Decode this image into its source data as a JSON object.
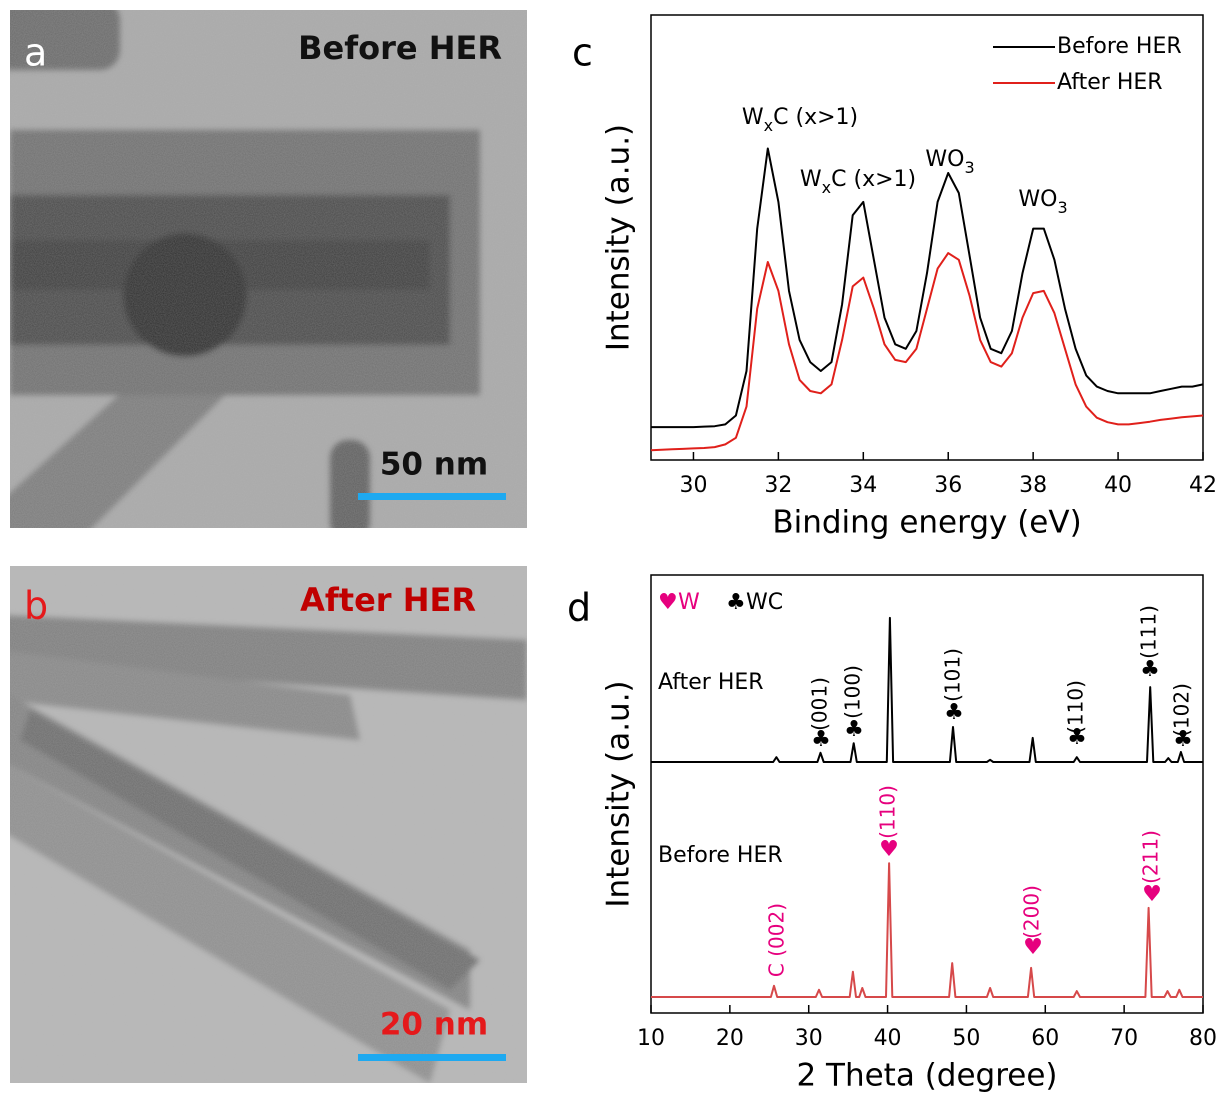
{
  "images": [
    {
      "letter": "a",
      "caption": "Before HER",
      "scale_bar": "50 nm"
    },
    {
      "letter": "b",
      "caption": "After HER",
      "scale_bar": "20 nm"
    }
  ],
  "chart_data": [
    {
      "type": "line",
      "panel": "c",
      "x_label": "Binding energy (eV)",
      "y_label": "Intensity (a.u.)",
      "xlim": [
        29,
        42
      ],
      "xticks": [
        30,
        32,
        34,
        36,
        38,
        40,
        42
      ],
      "ylim": [
        0,
        100
      ],
      "legend": "upper right",
      "x": [
        29,
        29.25,
        29.5,
        29.75,
        30,
        30.25,
        30.5,
        30.75,
        31,
        31.25,
        31.5,
        31.75,
        32,
        32.25,
        32.5,
        32.75,
        33,
        33.25,
        33.5,
        33.75,
        34,
        34.25,
        34.5,
        34.75,
        35,
        35.25,
        35.5,
        35.75,
        36,
        36.25,
        36.5,
        36.75,
        37,
        37.25,
        37.5,
        37.75,
        38,
        38.25,
        38.5,
        38.75,
        39,
        39.25,
        39.5,
        39.75,
        40,
        40.25,
        40.5,
        40.75,
        41,
        41.25,
        41.5,
        41.75,
        42
      ],
      "series": [
        {
          "name": "Before HER",
          "color": "#000000",
          "values": [
            7.4,
            7.4,
            7.4,
            7.4,
            7.4,
            7.5,
            7.6,
            8,
            10,
            20,
            52,
            70,
            58,
            38,
            27,
            22,
            20,
            22,
            35,
            55,
            58,
            45,
            32,
            26,
            25,
            29,
            42,
            58,
            64.5,
            60,
            46,
            32,
            25,
            24,
            29,
            42,
            52,
            52,
            45,
            34,
            25,
            19,
            16.5,
            15.5,
            15,
            15,
            15,
            15,
            15.5,
            16,
            16.5,
            16.5,
            17
          ]
        },
        {
          "name": "After HER",
          "color": "#e0201b",
          "values": [
            2.2,
            2.3,
            2.4,
            2.5,
            2.6,
            2.7,
            2.9,
            3.5,
            5,
            12,
            34,
            44.5,
            38,
            26,
            18,
            15.5,
            15,
            17,
            27,
            39,
            41,
            34,
            26,
            22.5,
            22,
            25,
            34,
            43,
            46.5,
            45,
            37,
            27,
            22,
            21,
            24,
            32,
            37.5,
            38,
            33,
            25,
            17,
            12,
            9.5,
            8.5,
            8,
            8,
            8.3,
            8.6,
            9,
            9.3,
            9.6,
            9.8,
            10
          ]
        }
      ],
      "annotations": [
        {
          "text": "W",
          "sub": "x",
          "after": "C (x>1)"
        },
        {
          "text": "W",
          "sub": "x",
          "after": "C (x>1)"
        },
        {
          "text": "WO",
          "sub": "3"
        },
        {
          "text": "WO",
          "sub": "3"
        }
      ]
    },
    {
      "type": "line",
      "panel": "d",
      "x_label": "2 Theta (degree)",
      "y_label": "Intensity (a.u.)",
      "xlim": [
        10,
        80
      ],
      "xticks": [
        10,
        20,
        30,
        40,
        50,
        60,
        70,
        80
      ],
      "ylim": [
        0,
        100
      ],
      "legend_items": [
        {
          "symbol": "♥",
          "label": "W",
          "color": "#e6007e"
        },
        {
          "symbol": "♣",
          "label": "WC",
          "color": "#000000"
        }
      ],
      "series": [
        {
          "name": "After HER",
          "color": "#000000",
          "x": [
            10,
            25.5,
            25.9,
            26.3,
            31.1,
            31.5,
            31.9,
            35.3,
            35.7,
            36.1,
            39.9,
            40.3,
            40.7,
            47.9,
            48.3,
            48.7,
            52.6,
            53,
            53.4,
            58,
            58.4,
            58.8,
            63.6,
            64,
            64.4,
            72.9,
            73.3,
            73.7,
            75.2,
            75.6,
            76,
            76.8,
            77.2,
            77.6,
            80
          ],
          "values": [
            57.3,
            57.3,
            58.4,
            57.3,
            57.3,
            59.4,
            57.3,
            57.3,
            61.6,
            57.3,
            57.3,
            90.2,
            57.3,
            57.3,
            65.3,
            57.3,
            57.3,
            57.8,
            57.3,
            57.3,
            62.8,
            57.3,
            57.3,
            58.4,
            57.3,
            57.3,
            74.4,
            57.3,
            57.3,
            58.2,
            57.3,
            57.3,
            59.6,
            57.3,
            57.3
          ]
        },
        {
          "name": "Before HER",
          "color": "#d6494a",
          "x": [
            10,
            25.2,
            25.6,
            26,
            30.9,
            31.3,
            31.7,
            35.2,
            35.6,
            36,
            36.4,
            36.8,
            37.2,
            39.8,
            40.2,
            40.6,
            47.8,
            48.2,
            48.6,
            52.6,
            53,
            53.4,
            57.8,
            58.2,
            58.6,
            63.6,
            64,
            64.4,
            72.7,
            73.1,
            73.5,
            75.1,
            75.5,
            75.9,
            76.6,
            77,
            77.4,
            80
          ],
          "values": [
            3.65,
            3.65,
            6.2,
            3.65,
            3.65,
            5.3,
            3.65,
            3.65,
            9.4,
            3.65,
            3.65,
            5.7,
            3.65,
            3.65,
            34.2,
            3.65,
            3.65,
            11.4,
            3.65,
            3.65,
            5.7,
            3.65,
            3.65,
            10.3,
            3.65,
            3.65,
            5,
            3.65,
            3.65,
            24,
            3.65,
            3.65,
            5,
            3.65,
            3.65,
            5.3,
            3.65,
            3.65
          ]
        }
      ],
      "annotations": [
        {
          "symbol": "♣",
          "label": "(001)",
          "color": "#000000"
        },
        {
          "symbol": "♣",
          "label": "(100)",
          "color": "#000000"
        },
        {
          "symbol": "♣",
          "label": "(101)",
          "color": "#000000"
        },
        {
          "symbol": "♣",
          "label": "(110)",
          "color": "#000000"
        },
        {
          "symbol": "♣",
          "label": "(111)",
          "color": "#000000"
        },
        {
          "symbol": "♣",
          "label": "(102)",
          "color": "#000000"
        },
        {
          "label": "C (002)",
          "color": "#e6007e"
        },
        {
          "symbol": "♥",
          "label": "(110)",
          "color": "#e6007e"
        },
        {
          "symbol": "♥",
          "label": "(200)",
          "color": "#e6007e"
        },
        {
          "symbol": "♥",
          "label": "(211)",
          "color": "#e6007e"
        }
      ]
    }
  ]
}
